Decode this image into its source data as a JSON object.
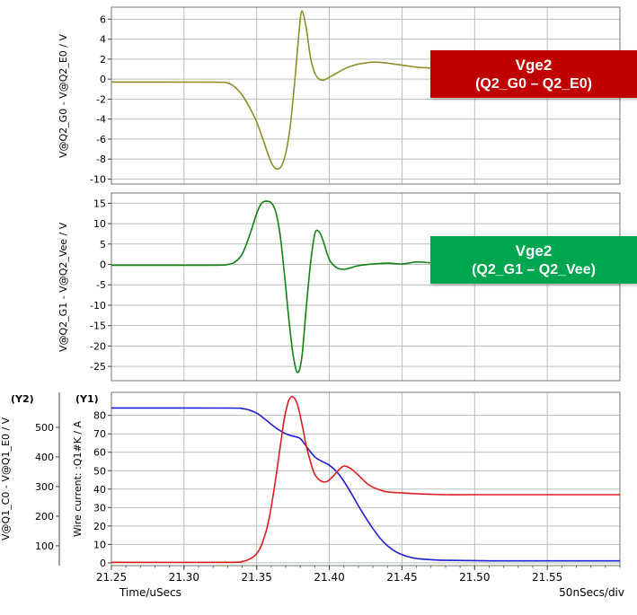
{
  "colors": {
    "background": "#ffffff",
    "grid": "#b7c1b7",
    "plot_border": "#6e786e",
    "axis": "#444444",
    "callout_red": "#c00000",
    "callout_green": "#00a550",
    "trace_olive": "#8e8e2a",
    "trace_green": "#148214",
    "trace_blue": "#1f1fd6",
    "trace_red": "#dd1f1f"
  },
  "annotations": {
    "top_box": {
      "line1": "Vge2",
      "line2": "(Q2_G0 – Q2_E0)"
    },
    "middle_box": {
      "line1": "Vge2",
      "line2": "(Q2_G1 – Q2_Vee)"
    }
  },
  "footer": {
    "per_div": "50nSecs/div"
  },
  "chart_data": [
    {
      "type": "line",
      "ylabel": "V@Q2_G0 - V@Q2_E0 / V",
      "xlim": [
        21.25,
        21.6
      ],
      "ylim": [
        -10.5,
        7.2
      ],
      "yticks": [
        6,
        4,
        2,
        0,
        -2,
        -4,
        -6,
        -8,
        -10
      ],
      "xgrid": [
        21.3,
        21.35,
        21.4,
        21.45,
        21.5,
        21.55
      ],
      "grid": true,
      "series": [
        {
          "name": "Vge2 Q2_G0 - Q2_E0",
          "color": "#8e8e2a",
          "x": [
            21.25,
            21.32,
            21.33,
            21.335,
            21.34,
            21.345,
            21.35,
            21.355,
            21.358,
            21.361,
            21.364,
            21.367,
            21.37,
            21.373,
            21.376,
            21.379,
            21.381,
            21.384,
            21.387,
            21.39,
            21.393,
            21.396,
            21.4,
            21.405,
            21.41,
            21.415,
            21.42,
            21.43,
            21.44,
            21.45,
            21.46,
            21.47,
            21.48,
            21.5,
            21.52,
            21.55,
            21.6
          ],
          "y": [
            -0.3,
            -0.3,
            -0.4,
            -0.8,
            -1.6,
            -2.8,
            -4.3,
            -6.3,
            -7.6,
            -8.6,
            -9.0,
            -8.7,
            -7.4,
            -4.8,
            -0.5,
            4.5,
            6.8,
            5.2,
            2.2,
            0.6,
            0.0,
            -0.1,
            0.2,
            0.6,
            1.0,
            1.3,
            1.5,
            1.7,
            1.6,
            1.4,
            1.2,
            1.1,
            1.0,
            1.0,
            1.0,
            1.0,
            1.0
          ]
        }
      ]
    },
    {
      "type": "line",
      "ylabel": "V@Q2_G1 - V@Q2_Vee / V",
      "xlim": [
        21.25,
        21.6
      ],
      "ylim": [
        -28.5,
        17.5
      ],
      "yticks": [
        15,
        10,
        5,
        0,
        -5,
        -10,
        -15,
        -20,
        -25
      ],
      "xgrid": [
        21.3,
        21.35,
        21.4,
        21.45,
        21.5,
        21.55
      ],
      "grid": true,
      "series": [
        {
          "name": "Vge2 Q2_G1 - Q2_Vee",
          "color": "#148214",
          "x": [
            21.25,
            21.32,
            21.33,
            21.335,
            21.34,
            21.345,
            21.35,
            21.353,
            21.356,
            21.36,
            21.363,
            21.366,
            21.369,
            21.372,
            21.375,
            21.378,
            21.381,
            21.384,
            21.387,
            21.39,
            21.393,
            21.396,
            21.4,
            21.405,
            21.41,
            21.415,
            21.42,
            21.43,
            21.44,
            21.45,
            21.46,
            21.47,
            21.48,
            21.5,
            21.55,
            21.6
          ],
          "y": [
            -0.2,
            -0.2,
            0.0,
            0.6,
            2.5,
            7.0,
            12.5,
            14.8,
            15.5,
            15.1,
            13.0,
            7.5,
            -2.0,
            -13.0,
            -22.0,
            -26.5,
            -23.0,
            -11.0,
            0.0,
            7.5,
            8.0,
            5.5,
            1.2,
            -0.8,
            -1.2,
            -0.8,
            -0.3,
            0.1,
            0.3,
            0.1,
            0.6,
            0.4,
            0.1,
            0.0,
            0.0,
            0.0
          ]
        }
      ]
    },
    {
      "type": "line",
      "xlabel": "Time/uSecs",
      "xlim": [
        21.25,
        21.6
      ],
      "xgrid": [
        21.3,
        21.35,
        21.4,
        21.45,
        21.5,
        21.55
      ],
      "xticks": [
        21.25,
        21.3,
        21.35,
        21.4,
        21.45,
        21.5,
        21.55
      ],
      "xtick_labels": [
        "21.25",
        "21.30",
        "21.35",
        "21.40",
        "21.45",
        "21.50",
        "21.55"
      ],
      "grid": true,
      "axes": [
        {
          "id": "(Y2)",
          "label": "V@Q1_C0 - V@Q1_E0 / V",
          "ylim": [
            33,
            618
          ],
          "yticks": [
            500,
            400,
            300,
            200,
            100
          ]
        },
        {
          "id": "(Y1)",
          "label": "Wire current: :Q1#K / A",
          "ylim": [
            -1.5,
            92.5
          ],
          "yticks": [
            80,
            70,
            60,
            50,
            40,
            30,
            20,
            10,
            0
          ]
        }
      ],
      "series": [
        {
          "name": "V@Q1_C0 - V@Q1_E0",
          "axis": "(Y2)",
          "color": "#1f1fd6",
          "x": [
            21.25,
            21.33,
            21.34,
            21.345,
            21.35,
            21.355,
            21.36,
            21.365,
            21.37,
            21.375,
            21.38,
            21.385,
            21.39,
            21.395,
            21.4,
            21.405,
            21.41,
            21.415,
            21.42,
            21.425,
            21.43,
            21.435,
            21.44,
            21.445,
            21.45,
            21.455,
            21.46,
            21.47,
            21.48,
            21.5,
            21.52,
            21.55,
            21.6
          ],
          "y": [
            565,
            565,
            563,
            558,
            548,
            530,
            510,
            492,
            478,
            470,
            462,
            430,
            400,
            385,
            372,
            350,
            318,
            278,
            235,
            195,
            158,
            125,
            100,
            82,
            70,
            62,
            57,
            53,
            51,
            50,
            49,
            49,
            49
          ]
        },
        {
          "name": "Wire current :Q1#K",
          "axis": "(Y1)",
          "color": "#dd1f1f",
          "x": [
            21.25,
            21.33,
            21.34,
            21.345,
            21.35,
            21.354,
            21.358,
            21.362,
            21.366,
            21.369,
            21.372,
            21.375,
            21.378,
            21.381,
            21.384,
            21.387,
            21.39,
            21.394,
            21.398,
            21.402,
            21.406,
            21.41,
            21.414,
            21.418,
            21.422,
            21.426,
            21.43,
            21.435,
            21.44,
            21.45,
            21.46,
            21.48,
            21.5,
            21.55,
            21.6
          ],
          "y": [
            0.3,
            0.3,
            0.8,
            2,
            5,
            11,
            22,
            40,
            62,
            78,
            88,
            90,
            86,
            76,
            64,
            55,
            48,
            44.5,
            44,
            46.5,
            50,
            52.5,
            51.5,
            49,
            46,
            43,
            41,
            39.5,
            38.5,
            38,
            37.5,
            37,
            37,
            37,
            37
          ]
        }
      ]
    }
  ]
}
